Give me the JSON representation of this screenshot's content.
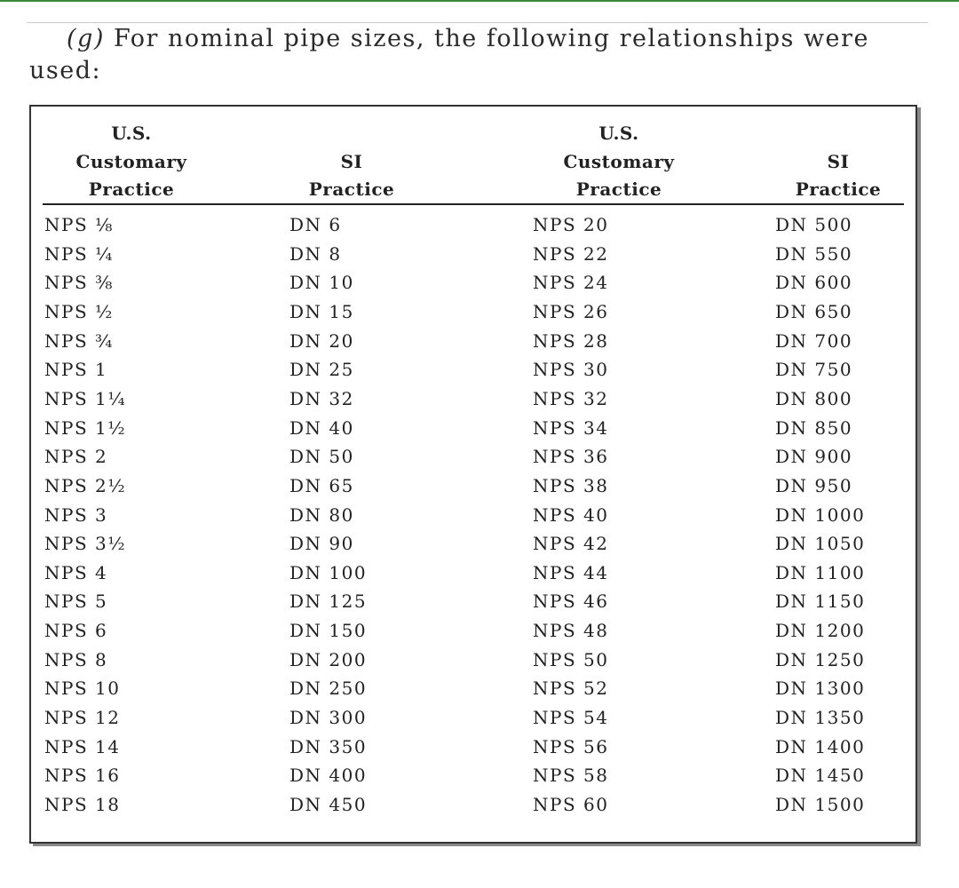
{
  "intro": {
    "label": "(g)",
    "text": "For nominal pipe sizes, the following relationships were used:"
  },
  "table": {
    "headers": [
      [
        "U.S.",
        "Customary",
        "Practice"
      ],
      [
        "SI",
        "Practice"
      ],
      [
        "U.S.",
        "Customary",
        "Practice"
      ],
      [
        "SI",
        "Practice"
      ]
    ],
    "rows": [
      [
        "NPS ⅛",
        "DN 6",
        "NPS 20",
        "DN 500"
      ],
      [
        "NPS ¼",
        "DN 8",
        "NPS 22",
        "DN 550"
      ],
      [
        "NPS ⅜",
        "DN 10",
        "NPS 24",
        "DN 600"
      ],
      [
        "NPS ½",
        "DN 15",
        "NPS 26",
        "DN 650"
      ],
      [
        "NPS ¾",
        "DN 20",
        "NPS 28",
        "DN 700"
      ],
      [
        "NPS 1",
        "DN 25",
        "NPS 30",
        "DN 750"
      ],
      [
        "NPS 1¼",
        "DN 32",
        "NPS 32",
        "DN 800"
      ],
      [
        "NPS 1½",
        "DN 40",
        "NPS 34",
        "DN 850"
      ],
      [
        "NPS 2",
        "DN 50",
        "NPS 36",
        "DN 900"
      ],
      [
        "NPS 2½",
        "DN 65",
        "NPS 38",
        "DN 950"
      ],
      [
        "NPS 3",
        "DN 80",
        "NPS 40",
        "DN 1000"
      ],
      [
        "NPS 3½",
        "DN 90",
        "NPS 42",
        "DN 1050"
      ],
      [
        "NPS 4",
        "DN 100",
        "NPS 44",
        "DN 1100"
      ],
      [
        "NPS 5",
        "DN 125",
        "NPS 46",
        "DN 1150"
      ],
      [
        "NPS 6",
        "DN 150",
        "NPS 48",
        "DN 1200"
      ],
      [
        "NPS 8",
        "DN 200",
        "NPS 50",
        "DN 1250"
      ],
      [
        "NPS 10",
        "DN 250",
        "NPS 52",
        "DN 1300"
      ],
      [
        "NPS 12",
        "DN 300",
        "NPS 54",
        "DN 1350"
      ],
      [
        "NPS 14",
        "DN 350",
        "NPS 56",
        "DN 1400"
      ],
      [
        "NPS 16",
        "DN 400",
        "NPS 58",
        "DN 1450"
      ],
      [
        "NPS 18",
        "DN 450",
        "NPS 60",
        "DN 1500"
      ]
    ]
  }
}
